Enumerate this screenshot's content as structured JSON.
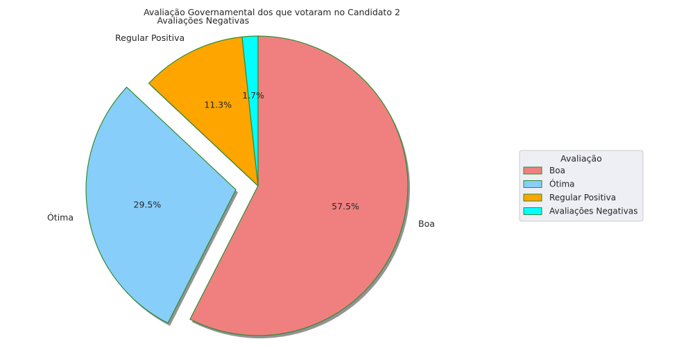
{
  "chart_data": {
    "type": "pie",
    "title": "Avaliação Governamental dos que votaram no Candidato 2",
    "slices": [
      {
        "label": "Boa",
        "value": 57.5,
        "pct_label": "57.5%",
        "color": "#f08080",
        "explode": 0.0
      },
      {
        "label": "Ótima",
        "value": 29.5,
        "pct_label": "29.5%",
        "color": "#87cefa",
        "explode": 0.15
      },
      {
        "label": "Regular Positiva",
        "value": 11.3,
        "pct_label": "11.3%",
        "color": "#ffa500",
        "explode": 0.0
      },
      {
        "label": "Avaliações Negativas",
        "value": 1.7,
        "pct_label": "1.7%",
        "color": "#00ffff",
        "explode": 0.0
      }
    ],
    "start_angle_deg": 90,
    "direction": "clockwise",
    "edge_color": "#2e8b2e",
    "shadow": true,
    "legend": {
      "title": "Avaliação",
      "placement": "right"
    }
  }
}
